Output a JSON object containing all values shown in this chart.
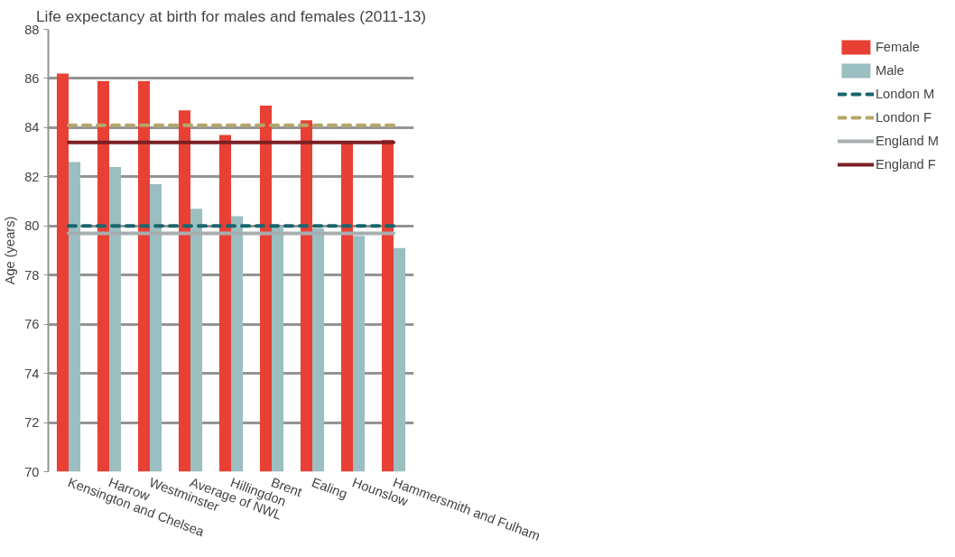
{
  "chart_data": {
    "type": "bar",
    "title": "Life expectancy at birth for males and females (2011-13)",
    "ylabel": "Age (years)",
    "categories": [
      "Kensington and Chelsea",
      "Harrow",
      "Westminster",
      "Average of NWL",
      "Hillingdon",
      "Brent",
      "Ealing",
      "Hounslow",
      "Hammersmith and Fulham"
    ],
    "series": [
      {
        "name": "Female",
        "color": "#e84035",
        "values": [
          86.2,
          85.9,
          85.9,
          84.7,
          83.7,
          84.9,
          84.3,
          83.4,
          83.5
        ]
      },
      {
        "name": "Male",
        "color": "#9bbec1",
        "values": [
          82.6,
          82.4,
          81.7,
          80.7,
          80.4,
          80.0,
          79.9,
          79.6,
          79.1
        ]
      },
      {
        "name": "London M",
        "type": "line",
        "line_style": "dashed",
        "color": "#19656e",
        "values": [
          80.0,
          80.0,
          80.0,
          80.0,
          80.0,
          80.0,
          80.0,
          80.0,
          80.0
        ]
      },
      {
        "name": "London F",
        "type": "line",
        "line_style": "dashed",
        "color": "#b5a66a",
        "values": [
          84.1,
          84.1,
          84.1,
          84.1,
          84.1,
          84.1,
          84.1,
          84.1,
          84.1
        ]
      },
      {
        "name": "England M",
        "type": "line",
        "line_style": "solid",
        "color": "#a7adaf",
        "values": [
          79.7,
          79.7,
          79.7,
          79.7,
          79.7,
          79.7,
          79.7,
          79.7,
          79.7
        ]
      },
      {
        "name": "England F",
        "type": "line",
        "line_style": "solid",
        "color": "#7b2023",
        "values": [
          83.4,
          83.4,
          83.4,
          83.4,
          83.4,
          83.4,
          83.4,
          83.4,
          83.4
        ]
      }
    ],
    "ylim": [
      70,
      88
    ],
    "yticks": [
      70,
      72,
      74,
      76,
      78,
      80,
      82,
      84,
      86,
      88
    ],
    "grid": "y",
    "legend": "right",
    "marker": "none"
  }
}
